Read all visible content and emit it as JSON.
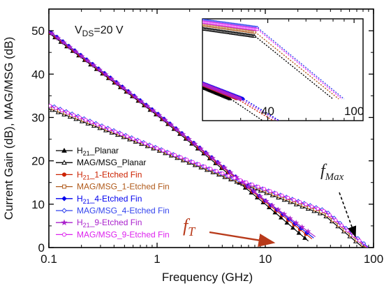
{
  "chart_data": [
    {
      "type": "line",
      "xscale": "log",
      "xlim": [
        0.1,
        100
      ],
      "ylim": [
        0,
        55
      ],
      "xlabel": "Frequency (GHz)",
      "ylabel": "Current Gain (dB), MAG/MSG (dB)",
      "x_ticks": [
        "0.1",
        "1",
        "10",
        "100"
      ],
      "y_ticks": [
        "0",
        "10",
        "20",
        "30",
        "40",
        "50"
      ],
      "annotation_vds": {
        "prefix": "V",
        "sub": "DS",
        "suffix": "=20 V"
      },
      "annotation_ft": {
        "main": "f",
        "sub": "T"
      },
      "annotation_fmax": {
        "main": "f",
        "sub": "Max"
      },
      "legend_position": "lower-left",
      "legend": [
        {
          "label": "H21_Planar",
          "pre": "H",
          "sub": "21",
          "post": "_Planar",
          "color": "#000000",
          "marker": "triangle-filled"
        },
        {
          "label": "MAG/MSG_Planar",
          "pre": "MAG/MSG_Planar",
          "sub": "",
          "post": "",
          "color": "#000000",
          "marker": "triangle-open"
        },
        {
          "label": "H21_1-Etched Fin",
          "pre": "H",
          "sub": "21",
          "post": "_1-Etched Fin",
          "color": "#cc2200",
          "marker": "circle-filled"
        },
        {
          "label": "MAG/MSG_1-Etched Fin",
          "pre": "MAG/MSG_1-Etched Fin",
          "sub": "",
          "post": "",
          "color": "#b05a1a",
          "marker": "square-open"
        },
        {
          "label": "H21_4-Etched Fin",
          "pre": "H",
          "sub": "21",
          "post": "_4-Etched Fin",
          "color": "#0000ee",
          "marker": "diamond-filled"
        },
        {
          "label": "MAG/MSG_4-Etched Fin",
          "pre": "MAG/MSG_4-Etched Fin",
          "sub": "",
          "post": "",
          "color": "#3344ee",
          "marker": "diamond-open"
        },
        {
          "label": "H21_9-Etched Fin",
          "pre": "H",
          "sub": "21",
          "post": "_9-Etched Fin",
          "color": "#aa22cc",
          "marker": "star-filled"
        },
        {
          "label": "MAG/MSG_9-Etched Fin",
          "pre": "MAG/MSG_9-Etched Fin",
          "sub": "",
          "post": "",
          "color": "#dd22ee",
          "marker": "circle-open"
        }
      ],
      "series": [
        {
          "name": "H21_Planar",
          "x": [
            0.1,
            1,
            10,
            25
          ],
          "y": [
            49.5,
            30.5,
            10,
            1.5
          ]
        },
        {
          "name": "MAG/MSG_Planar",
          "x": [
            0.1,
            1,
            5,
            35,
            80
          ],
          "y": [
            32,
            22.5,
            15.5,
            7.5,
            0
          ]
        },
        {
          "name": "H21_1-Etched Fin",
          "x": [
            0.1,
            1,
            10,
            27
          ],
          "y": [
            49.8,
            30.8,
            10.5,
            2
          ]
        },
        {
          "name": "MAG/MSG_1-Etched Fin",
          "x": [
            0.1,
            1,
            5,
            35,
            85
          ],
          "y": [
            32.5,
            22.8,
            15.8,
            8,
            0
          ]
        },
        {
          "name": "H21_4-Etched Fin",
          "x": [
            0.1,
            1,
            10,
            28
          ],
          "y": [
            50,
            31,
            10.8,
            2.2
          ]
        },
        {
          "name": "MAG/MSG_4-Etched Fin",
          "x": [
            0.1,
            1,
            5,
            36,
            90
          ],
          "y": [
            33,
            23,
            16,
            8.5,
            0
          ]
        },
        {
          "name": "H21_9-Etched Fin",
          "x": [
            0.1,
            1,
            10,
            29
          ],
          "y": [
            49.9,
            30.9,
            10.9,
            2.5
          ]
        },
        {
          "name": "MAG/MSG_9-Etched Fin",
          "x": [
            0.1,
            1,
            5,
            36,
            88
          ],
          "y": [
            32.8,
            22.9,
            16.2,
            8.3,
            0
          ]
        }
      ]
    },
    {
      "type": "line",
      "xscale": "log",
      "xlim": [
        20,
        110
      ],
      "x_ticks": [
        "40",
        "100"
      ],
      "series": [
        {
          "name": "H21_Planar",
          "x": [
            20,
            27,
            40
          ],
          "y": [
            1.4,
            0,
            -3
          ]
        },
        {
          "name": "H21_1-Etched Fin",
          "x": [
            20,
            29,
            45
          ],
          "y": [
            1.7,
            0,
            -3
          ]
        },
        {
          "name": "H21_4-Etched Fin",
          "x": [
            20,
            31,
            48
          ],
          "y": [
            1.9,
            0,
            -3
          ]
        },
        {
          "name": "H21_9-Etched Fin",
          "x": [
            20,
            30,
            47
          ],
          "y": [
            1.8,
            0,
            -3
          ]
        },
        {
          "name": "MAG/MSG_Planar",
          "x": [
            20,
            35,
            80
          ],
          "y": [
            8.4,
            7.5,
            0
          ]
        },
        {
          "name": "MAG/MSG_1-Etched Fin",
          "x": [
            20,
            35,
            85
          ],
          "y": [
            8.9,
            8,
            0
          ]
        },
        {
          "name": "MAG/MSG_4-Etched Fin",
          "x": [
            20,
            36,
            90
          ],
          "y": [
            9.4,
            8.5,
            0
          ]
        },
        {
          "name": "MAG/MSG_9-Etched Fin",
          "x": [
            20,
            36,
            88
          ],
          "y": [
            9.2,
            8.3,
            0
          ]
        }
      ]
    }
  ]
}
